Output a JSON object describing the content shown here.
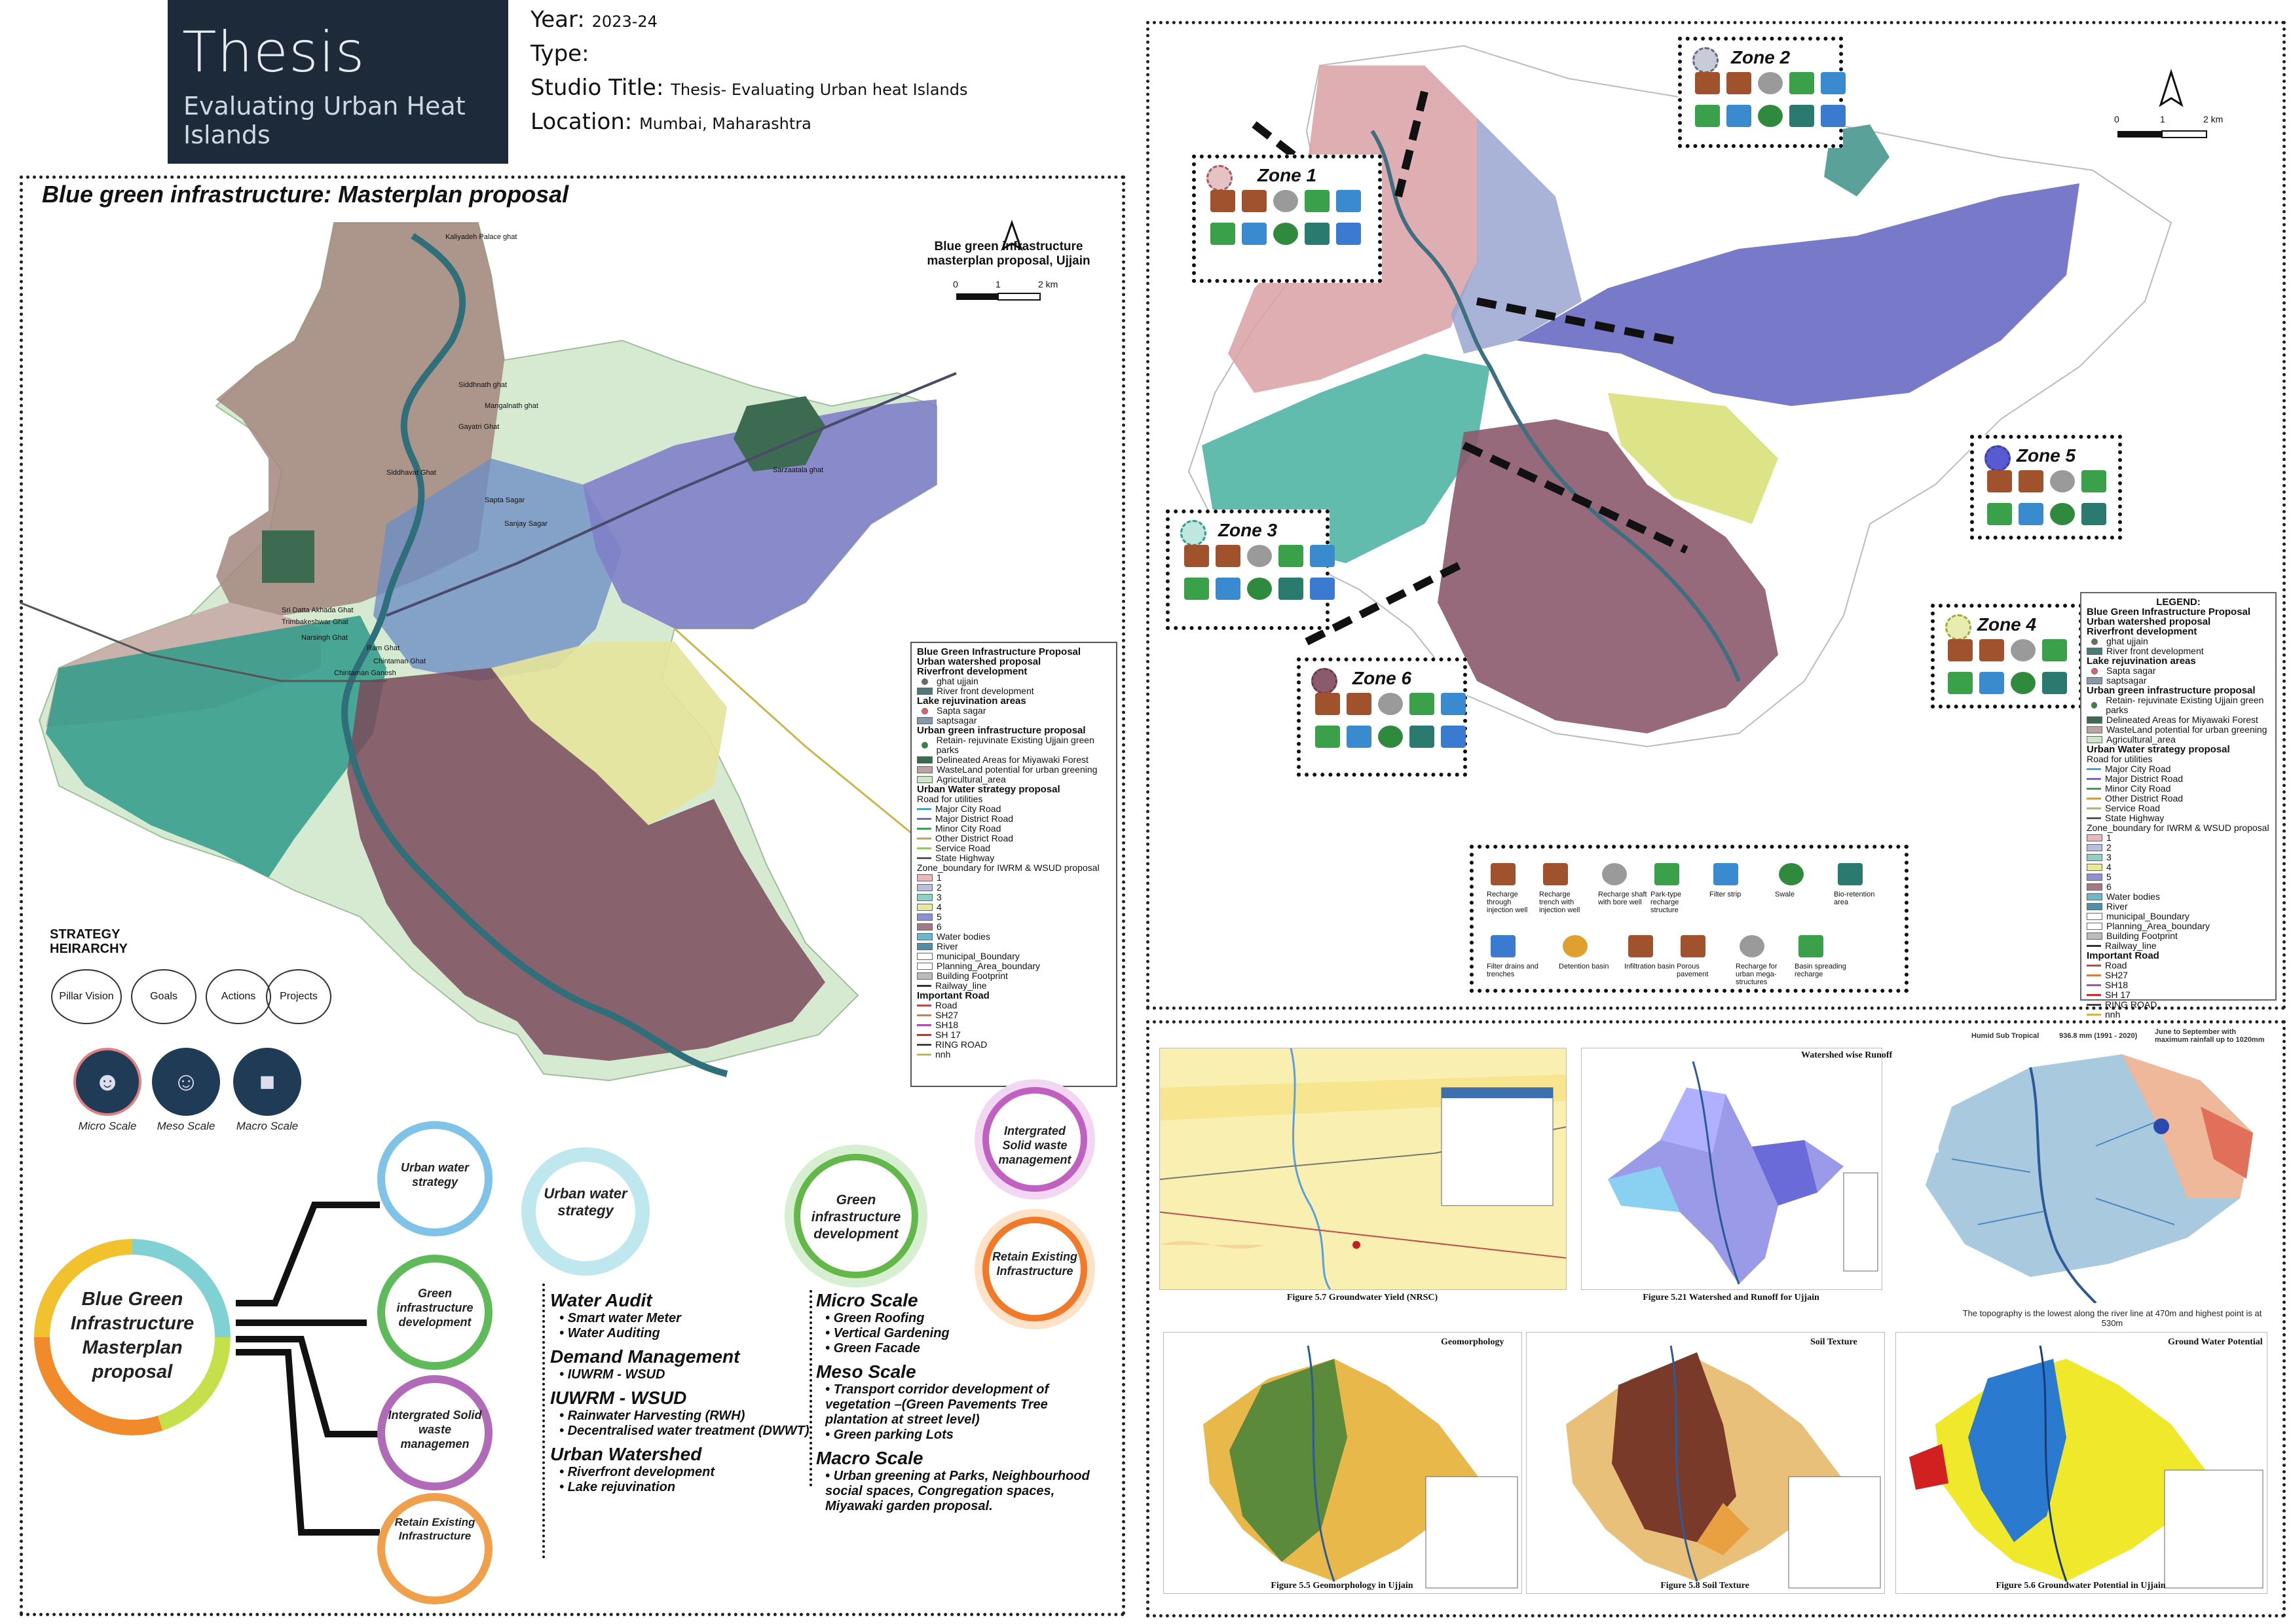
{
  "title": {
    "main": "Thesis",
    "sub": "Evaluating Urban Heat Islands"
  },
  "meta": {
    "year_label": "Year:",
    "year_value": "2023-24",
    "type_label": "Type:",
    "studio_label": "Studio Title:",
    "studio_value": "Thesis- Evaluating Urban heat Islands",
    "location_label": "Location:",
    "location_value": "Mumbai, Maharashtra"
  },
  "left_panel": {
    "title": "Blue green infrastructure: Masterplan proposal",
    "map_title": "Blue green infrastructure masterplan proposal, Ujjain",
    "scale": [
      "0",
      "1",
      "2 km"
    ],
    "place_labels": [
      "Kaliyadeh Palace ghat",
      "Siddhnath ghat",
      "Mangalnath ghat",
      "Gayatri Ghat",
      "Sarzaatala ghat",
      "Siddhavat Ghat",
      "Sapta Sagar",
      "Sanjay Sagar",
      "Chintaman Ganesh",
      "Sri Datta Akhada Ghat",
      "Trimbakeshwar Ghat",
      "Narsingh Ghat",
      "Ram Ghat",
      "Chintaman Ghat"
    ],
    "legend": {
      "headers": [
        "Blue Green Infrastructure Proposal",
        "Urban watershed proposal",
        "Riverfront development"
      ],
      "items": [
        {
          "label": "ghat ujjain",
          "color": "#6a6a6a",
          "kind": "dot"
        },
        {
          "label": "River front development",
          "color": "#4e7a76",
          "kind": "fill"
        },
        {
          "label": "Lake rejuvination areas",
          "kind": "header"
        },
        {
          "label": "Sapta sagar",
          "color": "#e06070",
          "kind": "dot"
        },
        {
          "label": "saptsagar",
          "color": "#8899aa",
          "kind": "fill"
        },
        {
          "label": "Urban green infrastructure proposal",
          "kind": "header"
        },
        {
          "label": "Retain- rejuvinate Existing Ujjain green parks",
          "color": "#2f8a3d",
          "kind": "dot"
        },
        {
          "label": "Delineated Areas for Miyawaki Forest",
          "color": "#3d6b52",
          "kind": "fill"
        },
        {
          "label": "WasteLand potential for urban greening",
          "color": "#b9a3a3",
          "kind": "fill"
        },
        {
          "label": "Agricultural_area",
          "color": "#cfe5c8",
          "kind": "fill"
        },
        {
          "label": "Urban Water strategy proposal",
          "kind": "header"
        },
        {
          "label": "Road for utilities",
          "kind": "plain"
        },
        {
          "label": "Major City Road",
          "color": "#4aa3c8",
          "kind": "line"
        },
        {
          "label": "Major District Road",
          "color": "#7a6bb0",
          "kind": "line"
        },
        {
          "label": "Minor City Road",
          "color": "#3f9e5a",
          "kind": "line"
        },
        {
          "label": "Other District Road",
          "color": "#c8a14a",
          "kind": "line"
        },
        {
          "label": "Service Road",
          "color": "#9bc46a",
          "kind": "line"
        },
        {
          "label": "State Highway",
          "color": "#5a5a5a",
          "kind": "line"
        },
        {
          "label": "Zone_boundary for IWRM & WSUD proposal",
          "kind": "plain"
        },
        {
          "label": "1",
          "color": "#e7b9bd",
          "kind": "fill"
        },
        {
          "label": "2",
          "color": "#b7bede",
          "kind": "fill"
        },
        {
          "label": "3",
          "color": "#8fd0c4",
          "kind": "fill"
        },
        {
          "label": "4",
          "color": "#e4ea9a",
          "kind": "fill"
        },
        {
          "label": "5",
          "color": "#8f8fd4",
          "kind": "fill"
        },
        {
          "label": "6",
          "color": "#a17a86",
          "kind": "fill"
        },
        {
          "label": "Water bodies",
          "color": "#6bb8c8",
          "kind": "fill"
        },
        {
          "label": "River",
          "color": "#4f8fa8",
          "kind": "fill"
        },
        {
          "label": "municipal_Boundary",
          "color": "#ffffff",
          "kind": "fill"
        },
        {
          "label": "Planning_Area_boundary",
          "color": "#ffffff",
          "kind": "fill"
        },
        {
          "label": "Building Footprint",
          "color": "#bbbbbb",
          "kind": "fill"
        },
        {
          "label": "Railway_line",
          "color": "#333333",
          "kind": "line"
        },
        {
          "label": "Important Road",
          "kind": "header"
        },
        {
          "label": "Road",
          "color": "#c04a4a",
          "kind": "line"
        },
        {
          "label": "SH27",
          "color": "#e07a3a",
          "kind": "line"
        },
        {
          "label": "SH18",
          "color": "#b04ab0",
          "kind": "line"
        },
        {
          "label": "SH 17",
          "color": "#d02a2a",
          "kind": "line"
        },
        {
          "label": "RING ROAD",
          "color": "#444444",
          "kind": "line"
        },
        {
          "label": "nnh",
          "color": "#c9b84a",
          "kind": "line"
        }
      ]
    },
    "strategy": {
      "heading": "STRATEGY HEIRARCHY",
      "pills": [
        "Pillar Vision",
        "Goals",
        "Actions",
        "Projects"
      ],
      "scales": [
        "Micro Scale",
        "Meso Scale",
        "Macro Scale"
      ]
    },
    "tree": {
      "root": "Blue Green Infrastructure Masterplan proposal",
      "branches": [
        "Urban water strategy",
        "Green infrastructure development",
        "Intergrated Solid waste managemen",
        "Retain Existing Infrastructure"
      ]
    },
    "water_strategy": {
      "title": "Urban water strategy",
      "groups": [
        {
          "h": "Water Audit",
          "items": [
            "Smart water Meter",
            "Water Auditing"
          ]
        },
        {
          "h": "Demand Management",
          "items": [
            "IUWRM - WSUD"
          ]
        },
        {
          "h": "IUWRM - WSUD",
          "items": [
            "Rainwater Harvesting (RWH)",
            "Decentralised water treatment (DWWT)"
          ]
        },
        {
          "h": "Urban Watershed",
          "items": [
            "Riverfront development",
            "Lake rejuvination"
          ]
        }
      ]
    },
    "green_strategy": {
      "title": "Green infrastructure development",
      "groups": [
        {
          "h": "Micro Scale",
          "items": [
            "Green Roofing",
            "Vertical Gardening",
            "Green Facade"
          ]
        },
        {
          "h": "Meso Scale",
          "items": [
            "Transport corridor development of vegetation –(Green Pavements Tree plantation at street level)",
            "Green parking Lots"
          ]
        },
        {
          "h": "Macro Scale",
          "items": [
            "Urban greening at Parks, Neighbourhood social spaces, Congregation spaces, Miyawaki garden proposal."
          ]
        }
      ]
    },
    "swm": "Intergrated Solid waste management",
    "retain": "Retain Existing Infrastructure"
  },
  "right_panel": {
    "scale": [
      "0",
      "1",
      "2 km"
    ],
    "zones": [
      "Zone 1",
      "Zone 2",
      "Zone 3",
      "Zone 4",
      "Zone 5",
      "Zone 6"
    ],
    "legend_title": "LEGEND:",
    "interventions": [
      "Recharge through injection well",
      "Recharge trench with injection well",
      "Recharge shaft with bore well",
      "Park-type recharge structure",
      "Filter strip",
      "Swale",
      "Bio-retention area",
      "Filter drains and trenches",
      "Detention basin",
      "Infiltration basin",
      "Porous pavement",
      "Recharge for urban mega-structures",
      "Basin spreading recharge"
    ]
  },
  "analysis": {
    "captions": [
      "Figure 5.7 Groundwater Yield (NRSC)",
      "Figure 5.21 Watershed and Runoff for Ujjain",
      "The topography is the lowest along the river line at 470m and highest point is at 530m",
      "Figure 5.5 Geomorphology in Ujjain",
      "Figure 5.8 Soil Texture",
      "Figure 5.6 Groundwater Potential in Ujjain"
    ],
    "map_titles": [
      "Watershed wise Runoff",
      "Geomorphology",
      "Soil Texture",
      "Ground Water Potential"
    ],
    "climate": {
      "zone": "Humid Sub Tropical",
      "rain": "936.8 mm (1991 - 2020)",
      "note": "June to September with maximum rainfall up to 1020mm"
    }
  }
}
